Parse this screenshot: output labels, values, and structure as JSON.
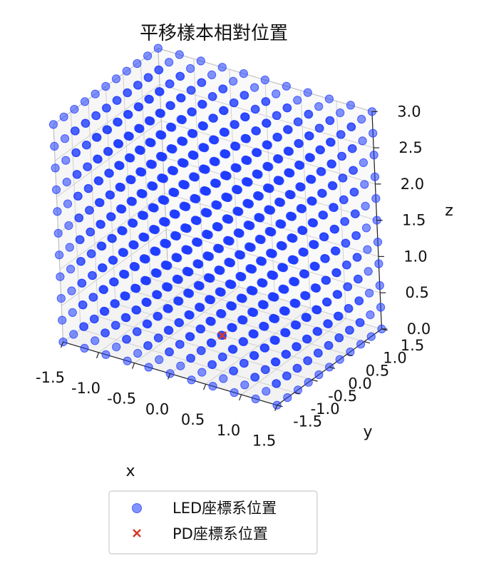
{
  "chart_data": {
    "type": "scatter",
    "projection": "3d",
    "title": "平移樣本相對位置",
    "xlabel": "x",
    "ylabel": "y",
    "zlabel": "z",
    "xlim": [
      -1.5,
      1.5
    ],
    "ylim": [
      -1.5,
      1.5
    ],
    "zlim": [
      0.0,
      3.0
    ],
    "x_ticks": [
      "-1.5",
      "-1.0",
      "-0.5",
      "0.0",
      "0.5",
      "1.0",
      "1.5"
    ],
    "y_ticks": [
      "-1.5",
      "-1.0",
      "-0.5",
      "0.0",
      "0.5",
      "1.0",
      "1.5"
    ],
    "z_ticks": [
      "0.0",
      "0.5",
      "1.0",
      "1.5",
      "2.0",
      "2.5",
      "3.0"
    ],
    "grid": true,
    "legend_position": "bottom-center",
    "series": [
      {
        "name": "LED座標系位置",
        "marker": "circle",
        "color": "#1f3cff",
        "opacity": 0.55,
        "grid_points": {
          "x": {
            "start": -1.5,
            "stop": 1.5,
            "step": 0.3
          },
          "y": {
            "start": -1.5,
            "stop": 1.5,
            "step": 0.3
          },
          "z": {
            "start": 0.0,
            "stop": 3.0,
            "step": 0.3
          }
        }
      },
      {
        "name": "PD座標系位置",
        "marker": "x",
        "color": "#d63a2a",
        "points": [
          {
            "x": 0.0,
            "y": 0.0,
            "z": 0.0
          }
        ]
      }
    ]
  }
}
